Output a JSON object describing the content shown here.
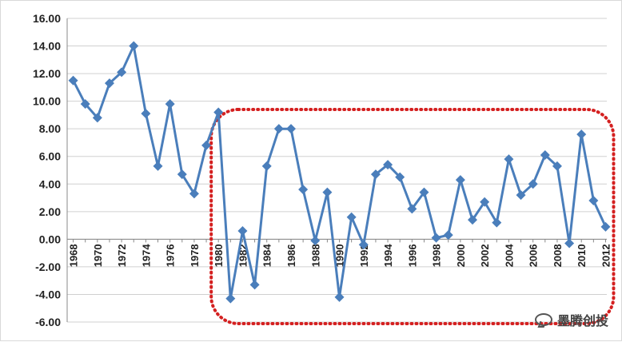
{
  "chart_data": {
    "type": "line",
    "title": "",
    "xlabel": "",
    "ylabel": "",
    "ylim": [
      -6,
      16
    ],
    "yticks": [
      "16.00",
      "14.00",
      "12.00",
      "10.00",
      "8.00",
      "6.00",
      "4.00",
      "2.00",
      "0.00",
      "-2.00",
      "-4.00",
      "-6.00"
    ],
    "x": [
      1968,
      1969,
      1970,
      1971,
      1972,
      1973,
      1974,
      1975,
      1976,
      1977,
      1978,
      1979,
      1980,
      1981,
      1982,
      1983,
      1984,
      1985,
      1986,
      1987,
      1988,
      1989,
      1990,
      1991,
      1992,
      1993,
      1994,
      1995,
      1996,
      1997,
      1998,
      1999,
      2000,
      2001,
      2002,
      2003,
      2004,
      2005,
      2006,
      2007,
      2008,
      2009,
      2010,
      2011,
      2012
    ],
    "xtick_labels": [
      "1968",
      "1970",
      "1972",
      "1974",
      "1976",
      "1978",
      "1980",
      "1982",
      "1984",
      "1986",
      "1988",
      "1990",
      "1992",
      "1994",
      "1996",
      "1998",
      "2000",
      "2002",
      "2004",
      "2006",
      "2008",
      "2010",
      "2012"
    ],
    "series": [
      {
        "values": [
          11.5,
          9.8,
          8.8,
          11.3,
          12.1,
          14.0,
          9.1,
          5.3,
          9.8,
          4.7,
          3.3,
          6.8,
          9.2,
          -4.3,
          0.6,
          -3.3,
          5.3,
          8.0,
          8.0,
          3.6,
          -0.1,
          3.4,
          -4.2,
          1.6,
          -0.4,
          4.7,
          5.4,
          4.5,
          2.2,
          3.4,
          0.1,
          0.3,
          4.3,
          1.4,
          2.7,
          1.2,
          5.8,
          3.2,
          4.0,
          6.1,
          5.3,
          -0.3,
          7.6,
          2.8,
          0.9
        ],
        "color": "#4a7ebb"
      }
    ],
    "grid": true,
    "highlight_box": {
      "from_year": 1980,
      "to_year": 2012,
      "color": "#d42020",
      "style": "dotted"
    }
  },
  "watermark": {
    "text": "墨腾创投",
    "icon": "wechat-icon"
  }
}
